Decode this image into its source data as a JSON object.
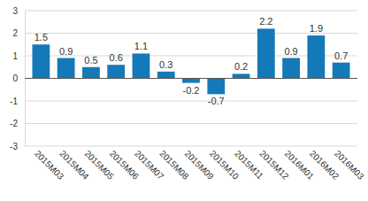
{
  "chart_data": {
    "type": "bar",
    "categories": [
      "2015M03",
      "2015M04",
      "2015M05",
      "2015M06",
      "2015M07",
      "2015M08",
      "2015M09",
      "2015M10",
      "2015M11",
      "2015M12",
      "2016M01",
      "2016M02",
      "2016M03"
    ],
    "values": [
      1.5,
      0.9,
      0.5,
      0.6,
      1.1,
      0.3,
      -0.2,
      -0.7,
      0.2,
      2.2,
      0.9,
      1.9,
      0.7
    ],
    "color": "#1479b8",
    "ylim": [
      -3,
      3
    ],
    "yticks": [
      -3,
      -2,
      -1,
      0,
      1,
      2,
      3
    ],
    "grid": true,
    "data_labels": true
  }
}
